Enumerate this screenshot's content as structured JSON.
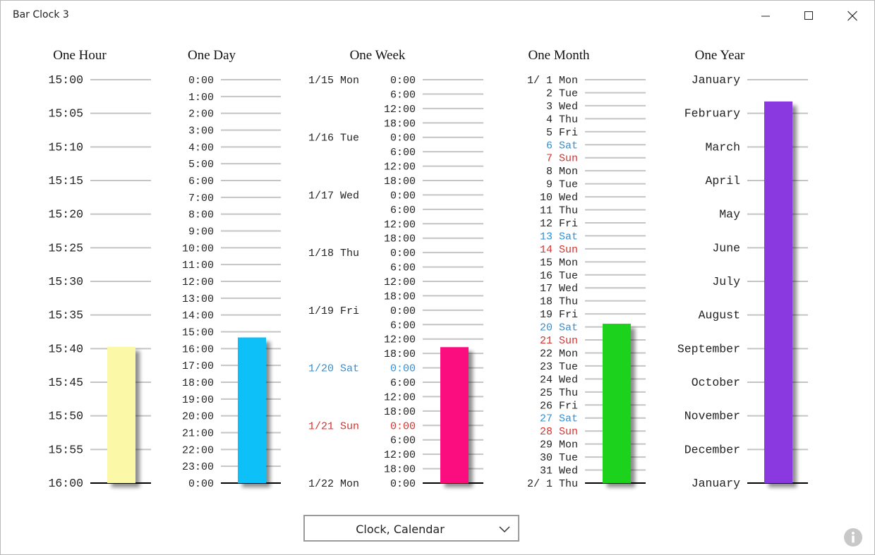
{
  "app": {
    "title": "Bar Clock 3"
  },
  "window_controls": {
    "minimize": "minimize-icon",
    "maximize": "maximize-icon",
    "close": "close-icon"
  },
  "colors": {
    "weekday": "#222222",
    "saturday": "#2f8fd8",
    "sunday": "#d8322f",
    "gridline": "#c4c4c4",
    "baseline": "#000000",
    "hour_bar": "#fbf8a8",
    "day_bar": "#0fc0f8",
    "week_bar": "#fb1080",
    "month_bar": "#1cd21c",
    "year_bar": "#8a38e0"
  },
  "columns": [
    {
      "title": "One Hour",
      "bar_fraction": 0.338,
      "labels": [
        {
          "text": "15:00"
        },
        {
          "text": "15:05"
        },
        {
          "text": "15:10"
        },
        {
          "text": "15:15"
        },
        {
          "text": "15:20"
        },
        {
          "text": "15:25"
        },
        {
          "text": "15:30"
        },
        {
          "text": "15:35"
        },
        {
          "text": "15:40"
        },
        {
          "text": "15:45"
        },
        {
          "text": "15:50"
        },
        {
          "text": "15:55"
        },
        {
          "text": "16:00"
        }
      ]
    },
    {
      "title": "One Day",
      "bar_fraction": 0.361,
      "labels": [
        {
          "text": "0:00"
        },
        {
          "text": "1:00"
        },
        {
          "text": "2:00"
        },
        {
          "text": "3:00"
        },
        {
          "text": "4:00"
        },
        {
          "text": "5:00"
        },
        {
          "text": "6:00"
        },
        {
          "text": "7:00"
        },
        {
          "text": "8:00"
        },
        {
          "text": "9:00"
        },
        {
          "text": "10:00"
        },
        {
          "text": "11:00"
        },
        {
          "text": "12:00"
        },
        {
          "text": "13:00"
        },
        {
          "text": "14:00"
        },
        {
          "text": "15:00"
        },
        {
          "text": "16:00"
        },
        {
          "text": "17:00"
        },
        {
          "text": "18:00"
        },
        {
          "text": "19:00"
        },
        {
          "text": "20:00"
        },
        {
          "text": "21:00"
        },
        {
          "text": "22:00"
        },
        {
          "text": "23:00"
        },
        {
          "text": "0:00"
        }
      ]
    },
    {
      "title": "One Week",
      "bar_fraction": 0.337,
      "labels": [
        {
          "date": "1/15 Mon",
          "text": "0:00",
          "type": "weekday"
        },
        {
          "text": "6:00"
        },
        {
          "text": "12:00"
        },
        {
          "text": "18:00"
        },
        {
          "date": "1/16 Tue",
          "text": "0:00",
          "type": "weekday"
        },
        {
          "text": "6:00"
        },
        {
          "text": "12:00"
        },
        {
          "text": "18:00"
        },
        {
          "date": "1/17 Wed",
          "text": "0:00",
          "type": "weekday"
        },
        {
          "text": "6:00"
        },
        {
          "text": "12:00"
        },
        {
          "text": "18:00"
        },
        {
          "date": "1/18 Thu",
          "text": "0:00",
          "type": "weekday"
        },
        {
          "text": "6:00"
        },
        {
          "text": "12:00"
        },
        {
          "text": "18:00"
        },
        {
          "date": "1/19 Fri",
          "text": "0:00",
          "type": "weekday"
        },
        {
          "text": "6:00"
        },
        {
          "text": "12:00"
        },
        {
          "text": "18:00"
        },
        {
          "date": "1/20 Sat",
          "text": "0:00",
          "type": "saturday"
        },
        {
          "text": "6:00"
        },
        {
          "text": "12:00"
        },
        {
          "text": "18:00"
        },
        {
          "date": "1/21 Sun",
          "text": "0:00",
          "type": "sunday"
        },
        {
          "text": "6:00"
        },
        {
          "text": "12:00"
        },
        {
          "text": "18:00"
        },
        {
          "date": "1/22 Mon",
          "text": "0:00",
          "type": "weekday"
        }
      ]
    },
    {
      "title": "One Month",
      "bar_fraction": 0.395,
      "labels": [
        {
          "text": "1/ 1 Mon",
          "type": "weekday"
        },
        {
          "text": "2 Tue",
          "type": "weekday"
        },
        {
          "text": "3 Wed",
          "type": "weekday"
        },
        {
          "text": "4 Thu",
          "type": "weekday"
        },
        {
          "text": "5 Fri",
          "type": "weekday"
        },
        {
          "text": "6 Sat",
          "type": "saturday"
        },
        {
          "text": "7 Sun",
          "type": "sunday"
        },
        {
          "text": "8 Mon",
          "type": "weekday"
        },
        {
          "text": "9 Tue",
          "type": "weekday"
        },
        {
          "text": "10 Wed",
          "type": "weekday"
        },
        {
          "text": "11 Thu",
          "type": "weekday"
        },
        {
          "text": "12 Fri",
          "type": "weekday"
        },
        {
          "text": "13 Sat",
          "type": "saturday"
        },
        {
          "text": "14 Sun",
          "type": "sunday"
        },
        {
          "text": "15 Mon",
          "type": "weekday"
        },
        {
          "text": "16 Tue",
          "type": "weekday"
        },
        {
          "text": "17 Wed",
          "type": "weekday"
        },
        {
          "text": "18 Thu",
          "type": "weekday"
        },
        {
          "text": "19 Fri",
          "type": "weekday"
        },
        {
          "text": "20 Sat",
          "type": "saturday"
        },
        {
          "text": "21 Sun",
          "type": "sunday"
        },
        {
          "text": "22 Mon",
          "type": "weekday"
        },
        {
          "text": "23 Tue",
          "type": "weekday"
        },
        {
          "text": "24 Wed",
          "type": "weekday"
        },
        {
          "text": "25 Thu",
          "type": "weekday"
        },
        {
          "text": "26 Fri",
          "type": "weekday"
        },
        {
          "text": "27 Sat",
          "type": "saturday"
        },
        {
          "text": "28 Sun",
          "type": "sunday"
        },
        {
          "text": "29 Mon",
          "type": "weekday"
        },
        {
          "text": "30 Tue",
          "type": "weekday"
        },
        {
          "text": "31 Wed",
          "type": "weekday"
        },
        {
          "text": "2/ 1 Thu",
          "type": "weekday"
        }
      ]
    },
    {
      "title": "One Year",
      "bar_fraction": 0.946,
      "labels": [
        {
          "text": "January"
        },
        {
          "text": "February"
        },
        {
          "text": "March"
        },
        {
          "text": "April"
        },
        {
          "text": "May"
        },
        {
          "text": "June"
        },
        {
          "text": "July"
        },
        {
          "text": "August"
        },
        {
          "text": "September"
        },
        {
          "text": "October"
        },
        {
          "text": "November"
        },
        {
          "text": "December"
        },
        {
          "text": "January"
        }
      ]
    }
  ],
  "dropdown": {
    "selected": "Clock, Calendar"
  },
  "info": {
    "icon": "info-icon"
  }
}
